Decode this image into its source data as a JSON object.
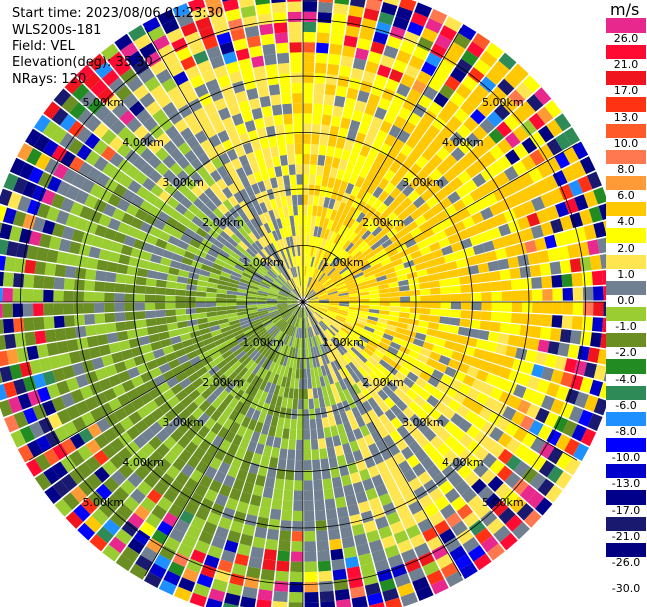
{
  "header": {
    "start_time": "Start time: 2023/08/06 01:23:30",
    "instrument": "WLS200s-181",
    "field": "Field: VEL",
    "elevation": "Elevation(deg): 35.30",
    "nrays": "NRays: 120"
  },
  "colorbar": {
    "unit": "m/s",
    "levels": [
      "26.0",
      "21.0",
      "17.0",
      "13.0",
      "10.0",
      "8.0",
      "6.0",
      "4.0",
      "2.0",
      "1.0",
      "0.0",
      "-1.0",
      "-2.0",
      "-4.0",
      "-6.0",
      "-8.0",
      "-10.0",
      "-13.0",
      "-17.0",
      "-21.0",
      "-26.0",
      "-30.0"
    ],
    "colors": [
      "#e8288c",
      "#ff0a32",
      "#f0141e",
      "#ff3214",
      "#ff5a28",
      "#ff7850",
      "#ff9b37",
      "#ffc800",
      "#ffff00",
      "#ffe650",
      "#708090",
      "#9acd32",
      "#6b8e23",
      "#228b22",
      "#2e8b57",
      "#1e90ff",
      "#0000ff",
      "#0000cd",
      "#00008b",
      "#191970",
      "#000080"
    ]
  },
  "chart_data": {
    "type": "ppi",
    "field": "VEL",
    "units": "m/s",
    "nrays": 120,
    "range_rings_km": [
      1.0,
      2.0,
      3.0,
      4.0,
      5.0
    ],
    "ring_labels": [
      "1.00km",
      "2.00km",
      "3.00km",
      "4.00km",
      "5.00km"
    ],
    "max_range_km": 5.6,
    "spokes_deg": [
      0,
      30,
      60,
      90,
      120,
      150
    ],
    "color_scale": {
      "bounds": [
        -30,
        -26,
        -21,
        -17,
        -13,
        -10,
        -8,
        -6,
        -4,
        -2,
        -1,
        0,
        1,
        2,
        4,
        6,
        8,
        10,
        13,
        17,
        21,
        26
      ],
      "colors": [
        "#000080",
        "#191970",
        "#00008b",
        "#0000cd",
        "#0000ff",
        "#1e90ff",
        "#2e8b57",
        "#228b22",
        "#6b8e23",
        "#9acd32",
        "#708090",
        "#ffe650",
        "#ffff00",
        "#ffc800",
        "#ff9b37",
        "#ff7850",
        "#ff5a28",
        "#ff3214",
        "#f0141e",
        "#ff0a32",
        "#e8288c"
      ]
    },
    "pattern": {
      "positive_azimuth_deg": 60,
      "wind_speed_ms": 2.5,
      "noise_start_km": 4.0
    },
    "grid": true
  }
}
